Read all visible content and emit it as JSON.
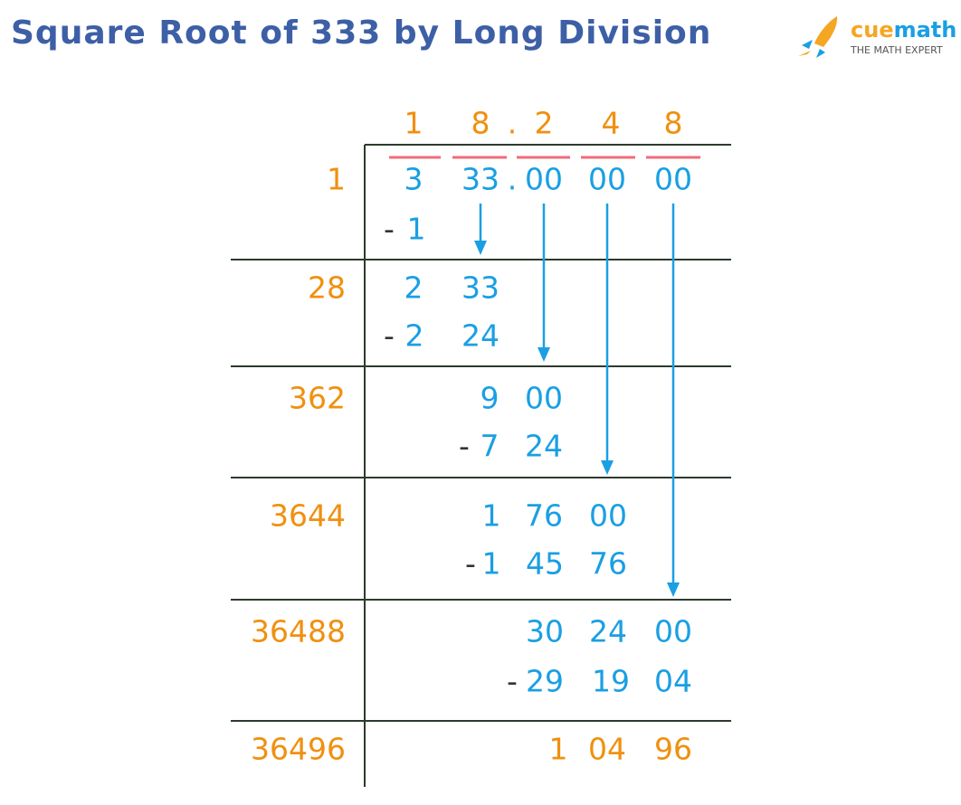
{
  "header": {
    "title": "Square Root of 333 by Long Division",
    "logo": {
      "brand_parts": [
        "cue",
        "math"
      ],
      "tagline": "THE MATH EXPERT"
    }
  },
  "quotient": [
    "1",
    "8",
    ".",
    "2",
    "4",
    "8"
  ],
  "steps": [
    {
      "divisor": "1",
      "value": [
        "3",
        "33",
        ".",
        "00",
        "00",
        "00"
      ],
      "subtract": [
        "-",
        "1"
      ]
    },
    {
      "divisor": "28",
      "value": [
        "2",
        "33"
      ],
      "subtract": [
        "-",
        "2",
        "24"
      ]
    },
    {
      "divisor": "362",
      "value": [
        "9",
        "00"
      ],
      "subtract": [
        "-",
        "7",
        "24"
      ]
    },
    {
      "divisor": "3644",
      "value": [
        "1",
        "76",
        "00"
      ],
      "subtract": [
        "-",
        "1",
        "45",
        "76"
      ]
    },
    {
      "divisor": "36488",
      "value": [
        "30",
        "24",
        "00"
      ],
      "subtract": [
        "-",
        "29",
        "19",
        "04"
      ]
    },
    {
      "divisor": "36496",
      "value": [
        "1",
        "04",
        "96"
      ]
    }
  ]
}
